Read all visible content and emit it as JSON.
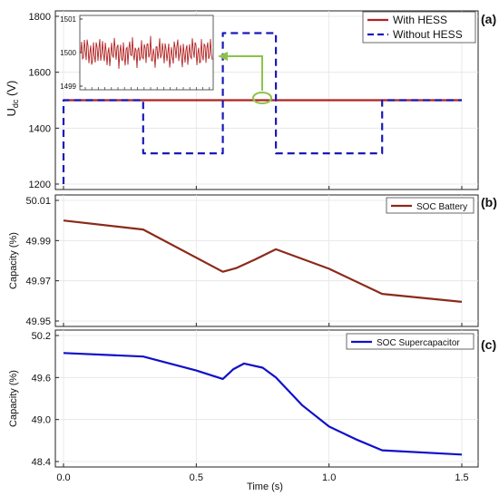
{
  "chart_data": [
    {
      "type": "line",
      "panel_label": "(a)",
      "ylabel": "U",
      "ylabel_sub": "dc",
      "ylabel_unit": "(V)",
      "ylim": [
        1200,
        1800
      ],
      "yticks": [
        1200,
        1400,
        1600,
        1800
      ],
      "xlim": [
        0,
        1.5
      ],
      "legend": "top-right",
      "series": [
        {
          "name": "With HESS",
          "color": "#b22222",
          "style": "solid",
          "x": [
            0,
            1.5
          ],
          "y": [
            1500,
            1500
          ]
        },
        {
          "name": "Without HESS",
          "color": "#1a1ab8",
          "style": "dashed",
          "x": [
            0,
            0,
            0.3,
            0.3,
            0.6,
            0.6,
            0.8,
            0.8,
            1.2,
            1.2,
            1.5
          ],
          "y": [
            1200,
            1500,
            1500,
            1310,
            1310,
            1740,
            1740,
            1310,
            1310,
            1500,
            1500
          ]
        }
      ],
      "inset": {
        "yticks": [
          1499,
          1500,
          1501
        ],
        "ylim": [
          1499,
          1501
        ],
        "series_color": "#b22222"
      }
    },
    {
      "type": "line",
      "panel_label": "(b)",
      "ylabel": "Capacity (%)",
      "ylim": [
        49.95,
        50.01
      ],
      "yticks": [
        49.95,
        49.97,
        49.99,
        50.01
      ],
      "xlim": [
        0,
        1.5
      ],
      "legend": "top-right",
      "series": [
        {
          "name": "SOC Battery",
          "color": "#8b2a1a",
          "x": [
            0,
            0.3,
            0.6,
            0.65,
            0.72,
            0.8,
            1.0,
            1.2,
            1.5
          ],
          "y": [
            50.0,
            49.9955,
            49.9745,
            49.9763,
            49.9805,
            49.9857,
            49.976,
            49.9635,
            49.9595
          ]
        }
      ]
    },
    {
      "type": "line",
      "panel_label": "(c)",
      "ylabel": "Capacity (%)",
      "ylim": [
        48.4,
        50.2
      ],
      "yticks": [
        48.4,
        49.0,
        49.6,
        50.2
      ],
      "xlim": [
        0,
        1.5
      ],
      "xticks": [
        0,
        0.5,
        1.0,
        1.5
      ],
      "xticklabels": [
        "0.0",
        "0.5",
        "1.0",
        "1.5"
      ],
      "xlabel": "Time (s)",
      "legend": "top-right",
      "series": [
        {
          "name": "SOC Supercapacitor",
          "color": "#1010c8",
          "x": [
            0,
            0.3,
            0.5,
            0.6,
            0.64,
            0.68,
            0.75,
            0.8,
            0.9,
            1.0,
            1.1,
            1.2,
            1.5
          ],
          "y": [
            49.95,
            49.9,
            49.7,
            49.58,
            49.72,
            49.8,
            49.74,
            49.6,
            49.2,
            48.9,
            48.72,
            48.56,
            48.5
          ]
        }
      ]
    }
  ]
}
